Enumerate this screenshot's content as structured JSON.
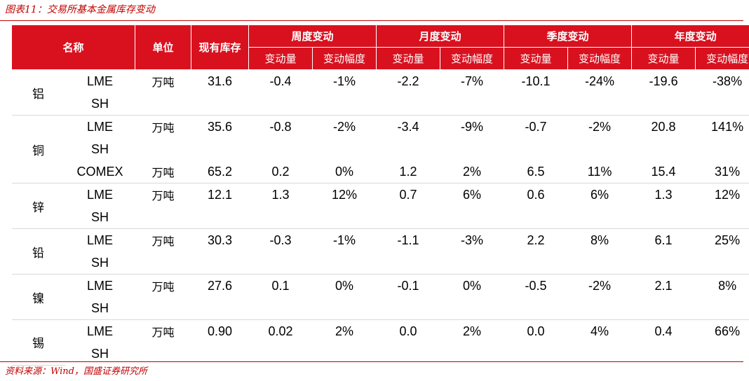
{
  "caption": "图表11：交易所基本金属库存变动",
  "source": "资料来源：Wind，国盛证券研究所",
  "colors": {
    "header_bg": "#d9111f",
    "positive": "#e3000f",
    "negative": "#00a23c",
    "rule": "#c00000"
  },
  "header": {
    "name": "名称",
    "unit": "单位",
    "stock": "现有库存",
    "groups": [
      "周度变动",
      "月度变动",
      "季度变动",
      "年度变动"
    ],
    "sub_amount": "变动量",
    "sub_pct": "变动幅度"
  },
  "metals": [
    {
      "name": "铝",
      "rows": [
        {
          "exchange": "LME",
          "unit": "万吨",
          "stock": "31.6",
          "cells": [
            "-0.4",
            "-1%",
            "-2.2",
            "-7%",
            "-10.1",
            "-24%",
            "-19.6",
            "-38%"
          ]
        },
        {
          "exchange": "SH",
          "unit": "",
          "stock": "",
          "cells": [
            "",
            "",
            "",
            "",
            "",
            "",
            "",
            ""
          ]
        }
      ]
    },
    {
      "name": "铜",
      "rows": [
        {
          "exchange": "LME",
          "unit": "万吨",
          "stock": "35.6",
          "cells": [
            "-0.8",
            "-2%",
            "-3.4",
            "-9%",
            "-0.7",
            "-2%",
            "20.8",
            "141%"
          ]
        },
        {
          "exchange": "SH",
          "unit": "",
          "stock": "",
          "cells": [
            "",
            "",
            "",
            "",
            "",
            "",
            "",
            ""
          ]
        },
        {
          "exchange": "COMEX",
          "unit": "万吨",
          "stock": "65.2",
          "cells": [
            "0.2",
            "0%",
            "1.2",
            "2%",
            "6.5",
            "11%",
            "15.4",
            "31%"
          ]
        }
      ]
    },
    {
      "name": "锌",
      "rows": [
        {
          "exchange": "LME",
          "unit": "万吨",
          "stock": "12.1",
          "cells": [
            "1.3",
            "12%",
            "0.7",
            "6%",
            "0.6",
            "6%",
            "1.3",
            "12%"
          ]
        },
        {
          "exchange": "SH",
          "unit": "",
          "stock": "",
          "cells": [
            "",
            "",
            "",
            "",
            "",
            "",
            "",
            ""
          ]
        }
      ]
    },
    {
      "name": "铅",
      "rows": [
        {
          "exchange": "LME",
          "unit": "万吨",
          "stock": "30.3",
          "cells": [
            "-0.3",
            "-1%",
            "-1.1",
            "-3%",
            "2.2",
            "8%",
            "6.1",
            "25%"
          ]
        },
        {
          "exchange": "SH",
          "unit": "",
          "stock": "",
          "cells": [
            "",
            "",
            "",
            "",
            "",
            "",
            "",
            ""
          ]
        }
      ]
    },
    {
      "name": "镍",
      "rows": [
        {
          "exchange": "LME",
          "unit": "万吨",
          "stock": "27.6",
          "cells": [
            "0.1",
            "0%",
            "-0.1",
            "0%",
            "-0.5",
            "-2%",
            "2.1",
            "8%"
          ]
        },
        {
          "exchange": "SH",
          "unit": "",
          "stock": "",
          "cells": [
            "",
            "",
            "",
            "",
            "",
            "",
            "",
            ""
          ]
        }
      ]
    },
    {
      "name": "锡",
      "rows": [
        {
          "exchange": "LME",
          "unit": "万吨",
          "stock": "0.90",
          "cells": [
            "0.02",
            "2%",
            "0.0",
            "2%",
            "0.0",
            "4%",
            "0.4",
            "66%"
          ]
        },
        {
          "exchange": "SH",
          "unit": "",
          "stock": "",
          "cells": [
            "",
            "",
            "",
            "",
            "",
            "",
            "",
            ""
          ]
        }
      ]
    }
  ],
  "cell_colors": [
    [
      [
        "neg",
        "neg",
        "neg",
        "neg",
        "neg",
        "neg",
        "neg",
        "neg"
      ],
      [
        "",
        "",
        "",
        "",
        "",
        "",
        "",
        ""
      ]
    ],
    [
      [
        "neg",
        "neg",
        "neg",
        "neg",
        "neg",
        "neg",
        "pos",
        "pos"
      ],
      [
        "",
        "",
        "",
        "",
        "",
        "",
        "",
        ""
      ],
      [
        "pos",
        "pos",
        "pos",
        "pos",
        "pos",
        "pos",
        "pos",
        "pos"
      ]
    ],
    [
      [
        "pos",
        "pos",
        "pos",
        "pos",
        "pos",
        "pos",
        "pos",
        "pos"
      ],
      [
        "",
        "",
        "",
        "",
        "",
        "",
        "",
        ""
      ]
    ],
    [
      [
        "neg",
        "neg",
        "neg",
        "neg",
        "pos",
        "pos",
        "pos",
        "pos"
      ],
      [
        "",
        "",
        "",
        "",
        "",
        "",
        "",
        ""
      ]
    ],
    [
      [
        "pos",
        "pos",
        "neg",
        "neg",
        "neg",
        "neg",
        "pos",
        "pos"
      ],
      [
        "",
        "",
        "",
        "",
        "",
        "",
        "",
        ""
      ]
    ],
    [
      [
        "pos",
        "pos",
        "pos",
        "pos",
        "pos",
        "pos",
        "pos",
        "pos"
      ],
      [
        "",
        "",
        "",
        "",
        "",
        "",
        "",
        ""
      ]
    ]
  ]
}
